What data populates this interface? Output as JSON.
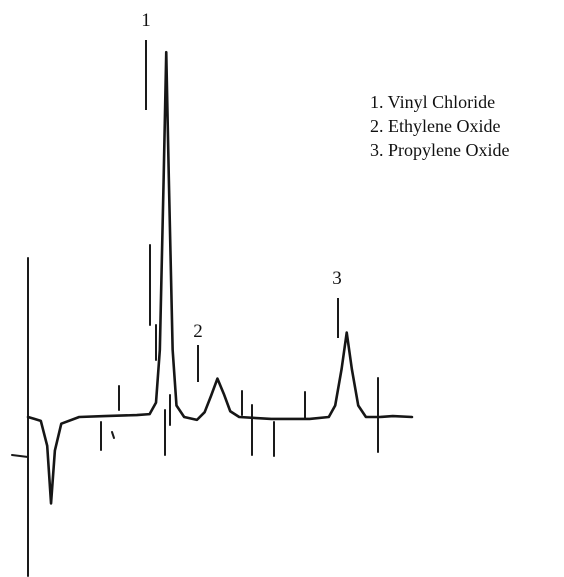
{
  "chart_data": {
    "type": "line",
    "title": "",
    "xlabel": "",
    "ylabel": "",
    "peak_labels": [
      "1",
      "2",
      "3"
    ],
    "legend": [
      "1. Vinyl Chloride",
      "2. Ethylene Oxide",
      "3. Propylene Oxide"
    ],
    "series": [
      {
        "values": [
          {
            "x": 0,
            "y": 0.0
          },
          {
            "x": 5,
            "y": -0.2
          },
          {
            "x": 10,
            "y": -0.4
          },
          {
            "x": 15,
            "y": -3.0
          },
          {
            "x": 18,
            "y": -9.0
          },
          {
            "x": 21,
            "y": -3.5
          },
          {
            "x": 26,
            "y": -0.7
          },
          {
            "x": 40,
            "y": 0.0
          },
          {
            "x": 60,
            "y": 0.1
          },
          {
            "x": 85,
            "y": 0.2
          },
          {
            "x": 95,
            "y": 0.3
          },
          {
            "x": 100,
            "y": 1.5
          },
          {
            "x": 103,
            "y": 7.0
          },
          {
            "x": 106,
            "y": 25.0
          },
          {
            "x": 108,
            "y": 38.0
          },
          {
            "x": 110,
            "y": 25.0
          },
          {
            "x": 113,
            "y": 7.0
          },
          {
            "x": 116,
            "y": 1.2
          },
          {
            "x": 122,
            "y": 0.0
          },
          {
            "x": 132,
            "y": -0.3
          },
          {
            "x": 138,
            "y": 0.5
          },
          {
            "x": 143,
            "y": 2.2
          },
          {
            "x": 148,
            "y": 4.0
          },
          {
            "x": 153,
            "y": 2.4
          },
          {
            "x": 158,
            "y": 0.6
          },
          {
            "x": 165,
            "y": 0.0
          },
          {
            "x": 190,
            "y": -0.2
          },
          {
            "x": 220,
            "y": -0.2
          },
          {
            "x": 235,
            "y": 0.0
          },
          {
            "x": 240,
            "y": 1.2
          },
          {
            "x": 245,
            "y": 5.0
          },
          {
            "x": 249,
            "y": 8.8
          },
          {
            "x": 253,
            "y": 5.0
          },
          {
            "x": 258,
            "y": 1.2
          },
          {
            "x": 264,
            "y": 0.0
          },
          {
            "x": 275,
            "y": 0.0
          },
          {
            "x": 285,
            "y": 0.1
          },
          {
            "x": 300,
            "y": 0.0
          }
        ]
      }
    ]
  }
}
